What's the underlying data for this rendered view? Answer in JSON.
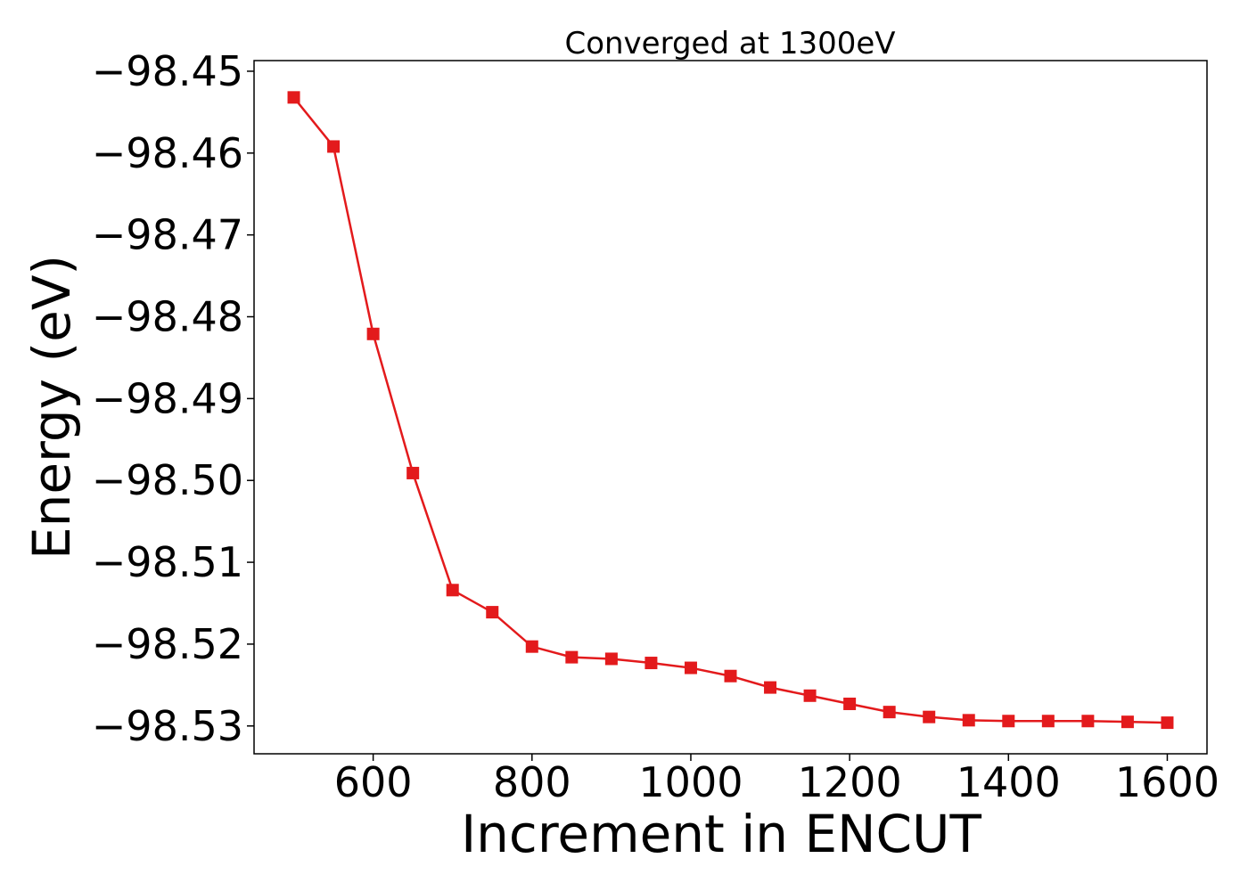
{
  "chart_data": {
    "type": "line",
    "title": "Converged at 1300eV",
    "xlabel": "Increment in ENCUT",
    "ylabel": "Energy (eV)",
    "xlim": [
      450,
      1650
    ],
    "ylim": [
      -98.5334,
      -98.4487
    ],
    "x_ticks": [
      600,
      800,
      1000,
      1200,
      1400,
      1600
    ],
    "x_tick_labels": [
      "600",
      "800",
      "1000",
      "1200",
      "1400",
      "1600"
    ],
    "y_ticks": [
      -98.45,
      -98.46,
      -98.47,
      -98.48,
      -98.49,
      -98.5,
      -98.51,
      -98.52,
      -98.53
    ],
    "y_tick_labels": [
      "−98.45",
      "−98.46",
      "−98.47",
      "−98.48",
      "−98.49",
      "−98.50",
      "−98.51",
      "−98.52",
      "−98.53"
    ],
    "grid": false,
    "series": [
      {
        "color": "#e31a1c",
        "marker": "square",
        "x": [
          500,
          550,
          600,
          650,
          700,
          750,
          800,
          850,
          900,
          950,
          1000,
          1050,
          1100,
          1150,
          1200,
          1250,
          1300,
          1350,
          1400,
          1450,
          1500,
          1550,
          1600
        ],
        "y": [
          -98.4532,
          -98.4592,
          -98.4821,
          -98.4991,
          -98.5134,
          -98.5161,
          -98.5203,
          -98.5216,
          -98.5218,
          -98.5223,
          -98.5229,
          -98.5239,
          -98.5253,
          -98.5263,
          -98.5273,
          -98.5283,
          -98.5289,
          -98.5293,
          -98.5294,
          -98.5294,
          -98.5294,
          -98.5295,
          -98.5296
        ]
      }
    ]
  }
}
